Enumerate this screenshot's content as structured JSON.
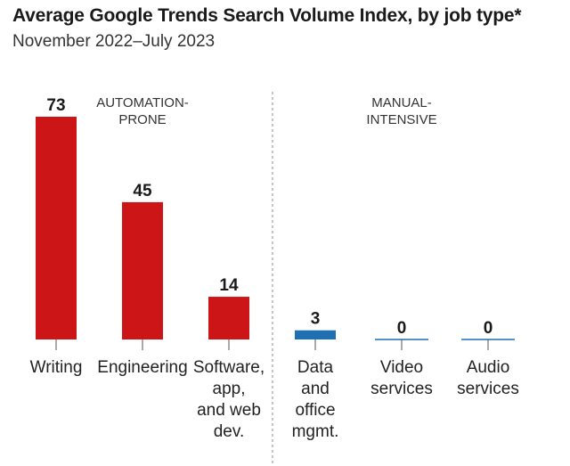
{
  "title": "Average Google Trends Search Volume Index, by job type*",
  "subtitle": "November 2022–July 2023",
  "colors": {
    "automation": "#cc1517",
    "manual": "#1f6fb5",
    "tick": "#555555",
    "divider": "#888888"
  },
  "groups": [
    {
      "lines": [
        "AUTOMATION-",
        "PRONE"
      ]
    },
    {
      "lines": [
        "MANUAL-",
        "INTENSIVE"
      ]
    }
  ],
  "chart_data": {
    "type": "bar",
    "title": "Average Google Trends Search Volume Index, by job type*",
    "subtitle": "November 2022–July 2023",
    "categories": [
      "Writing",
      "Engineering",
      "Software, app, and web dev.",
      "Data and office mgmt.",
      "Video services",
      "Audio services"
    ],
    "category_lines": [
      [
        "Writing"
      ],
      [
        "Engineering"
      ],
      [
        "Software,",
        "app,",
        "and web",
        "dev."
      ],
      [
        "Data",
        "and",
        "office",
        "mgmt."
      ],
      [
        "Video",
        "services"
      ],
      [
        "Audio",
        "services"
      ]
    ],
    "values": [
      73,
      45,
      14,
      3,
      0,
      0
    ],
    "category_group": [
      "AUTOMATION-PRONE",
      "AUTOMATION-PRONE",
      "AUTOMATION-PRONE",
      "MANUAL-INTENSIVE",
      "MANUAL-INTENSIVE",
      "MANUAL-INTENSIVE"
    ],
    "xlabel": "",
    "ylabel": "",
    "ylim": [
      0,
      73
    ],
    "grid": false,
    "legend": "none"
  }
}
